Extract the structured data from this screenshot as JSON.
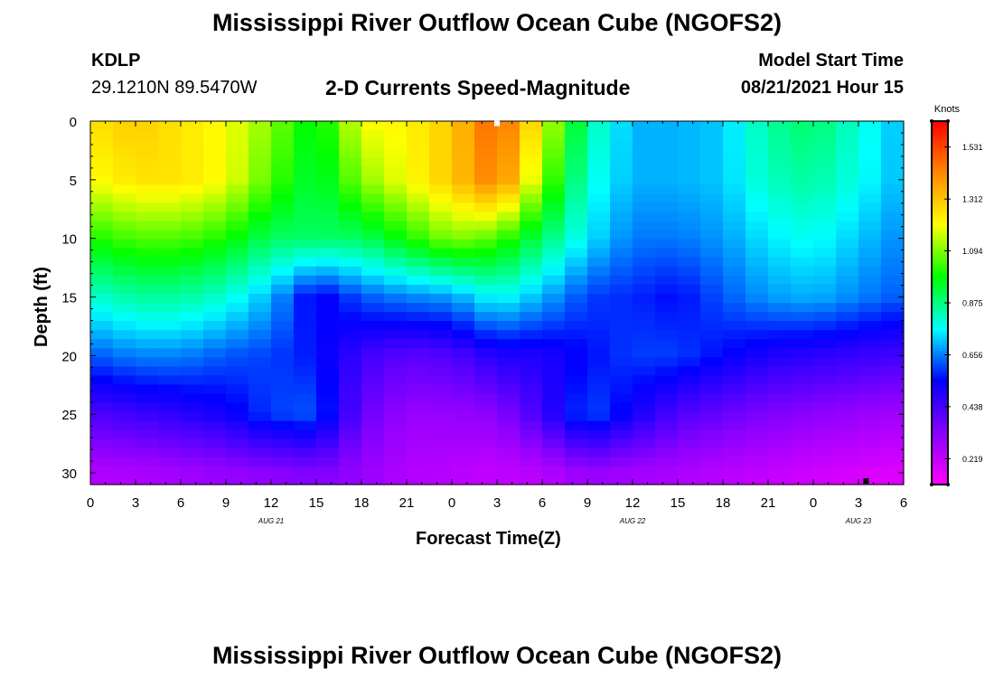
{
  "header": {
    "title_top": "Mississippi River Outflow Ocean Cube (NGOFS2)",
    "title_bottom": "Mississippi River Outflow Ocean Cube (NGOFS2)",
    "station": "KDLP",
    "coordinates": "29.1210N  89.5470W",
    "subtitle": "2-D Currents Speed-Magnitude",
    "model_start_label": "Model Start Time",
    "model_start_value": "08/21/2021 Hour 15"
  },
  "chart_data": {
    "type": "heatmap",
    "title": "2-D Currents Speed-Magnitude",
    "xlabel": "Forecast Time(Z)",
    "ylabel": "Depth (ft)",
    "x_tick_labels": [
      "0",
      "3",
      "6",
      "9",
      "12",
      "15",
      "18",
      "21",
      "0",
      "3",
      "6",
      "9",
      "12",
      "15",
      "18",
      "21",
      "0",
      "3",
      "6"
    ],
    "x_range_hours": [
      0,
      54
    ],
    "date_labels": [
      {
        "hour": 12,
        "label": "AUG 21"
      },
      {
        "hour": 36,
        "label": "AUG 22"
      },
      {
        "hour": 51,
        "label": "AUG 23"
      }
    ],
    "y_ticks": [
      0,
      5,
      10,
      15,
      20,
      25,
      30
    ],
    "y_range": [
      0,
      31
    ],
    "y_inverted": true,
    "colorbar": {
      "title": "Knots",
      "ticks": [
        "1.531",
        "1.312",
        "1.094",
        "0.875",
        "0.656",
        "0.438",
        "0.219"
      ],
      "min": 0.11,
      "max": 1.64,
      "colors": [
        "#ff00ff",
        "#8800ff",
        "#0000ff",
        "#00ffff",
        "#00ff00",
        "#ffff00",
        "#ff8800",
        "#ff0000"
      ]
    },
    "markers": [
      {
        "hour": 27,
        "depth": 0.2,
        "color": "#ffffff"
      },
      {
        "hour": 51.5,
        "depth": 30.7,
        "color": "#000000"
      }
    ],
    "x_hours": [
      0,
      3,
      6,
      9,
      12,
      15,
      18,
      21,
      24,
      27,
      30,
      33,
      36,
      39,
      42,
      45,
      48,
      51,
      54
    ],
    "depths_ft": [
      0,
      5,
      10,
      15,
      20,
      25,
      30
    ],
    "speed_knots": [
      [
        1.25,
        1.3,
        1.25,
        1.2,
        1.1,
        0.95,
        1.2,
        1.22,
        1.3,
        1.5,
        1.2,
        0.85,
        0.7,
        0.7,
        0.72,
        0.85,
        0.9,
        0.8,
        0.7
      ],
      [
        1.2,
        1.25,
        1.25,
        1.2,
        1.05,
        0.92,
        1.1,
        1.2,
        1.3,
        1.45,
        1.1,
        0.8,
        0.7,
        0.7,
        0.72,
        0.82,
        0.85,
        0.78,
        0.7
      ],
      [
        1.0,
        1.05,
        1.05,
        1.0,
        0.9,
        0.9,
        0.9,
        1.0,
        1.1,
        1.05,
        0.9,
        0.75,
        0.65,
        0.65,
        0.68,
        0.75,
        0.78,
        0.72,
        0.66
      ],
      [
        0.8,
        0.85,
        0.85,
        0.8,
        0.7,
        0.52,
        0.62,
        0.66,
        0.68,
        0.78,
        0.7,
        0.6,
        0.58,
        0.55,
        0.62,
        0.68,
        0.7,
        0.66,
        0.62
      ],
      [
        0.62,
        0.66,
        0.66,
        0.62,
        0.6,
        0.56,
        0.45,
        0.4,
        0.42,
        0.5,
        0.5,
        0.55,
        0.6,
        0.6,
        0.55,
        0.5,
        0.48,
        0.46,
        0.44
      ],
      [
        0.42,
        0.45,
        0.48,
        0.52,
        0.6,
        0.62,
        0.38,
        0.3,
        0.3,
        0.32,
        0.45,
        0.62,
        0.52,
        0.42,
        0.38,
        0.34,
        0.32,
        0.3,
        0.28
      ],
      [
        0.25,
        0.26,
        0.28,
        0.3,
        0.32,
        0.34,
        0.3,
        0.25,
        0.24,
        0.22,
        0.24,
        0.3,
        0.28,
        0.26,
        0.24,
        0.22,
        0.2,
        0.18,
        0.17
      ]
    ]
  }
}
